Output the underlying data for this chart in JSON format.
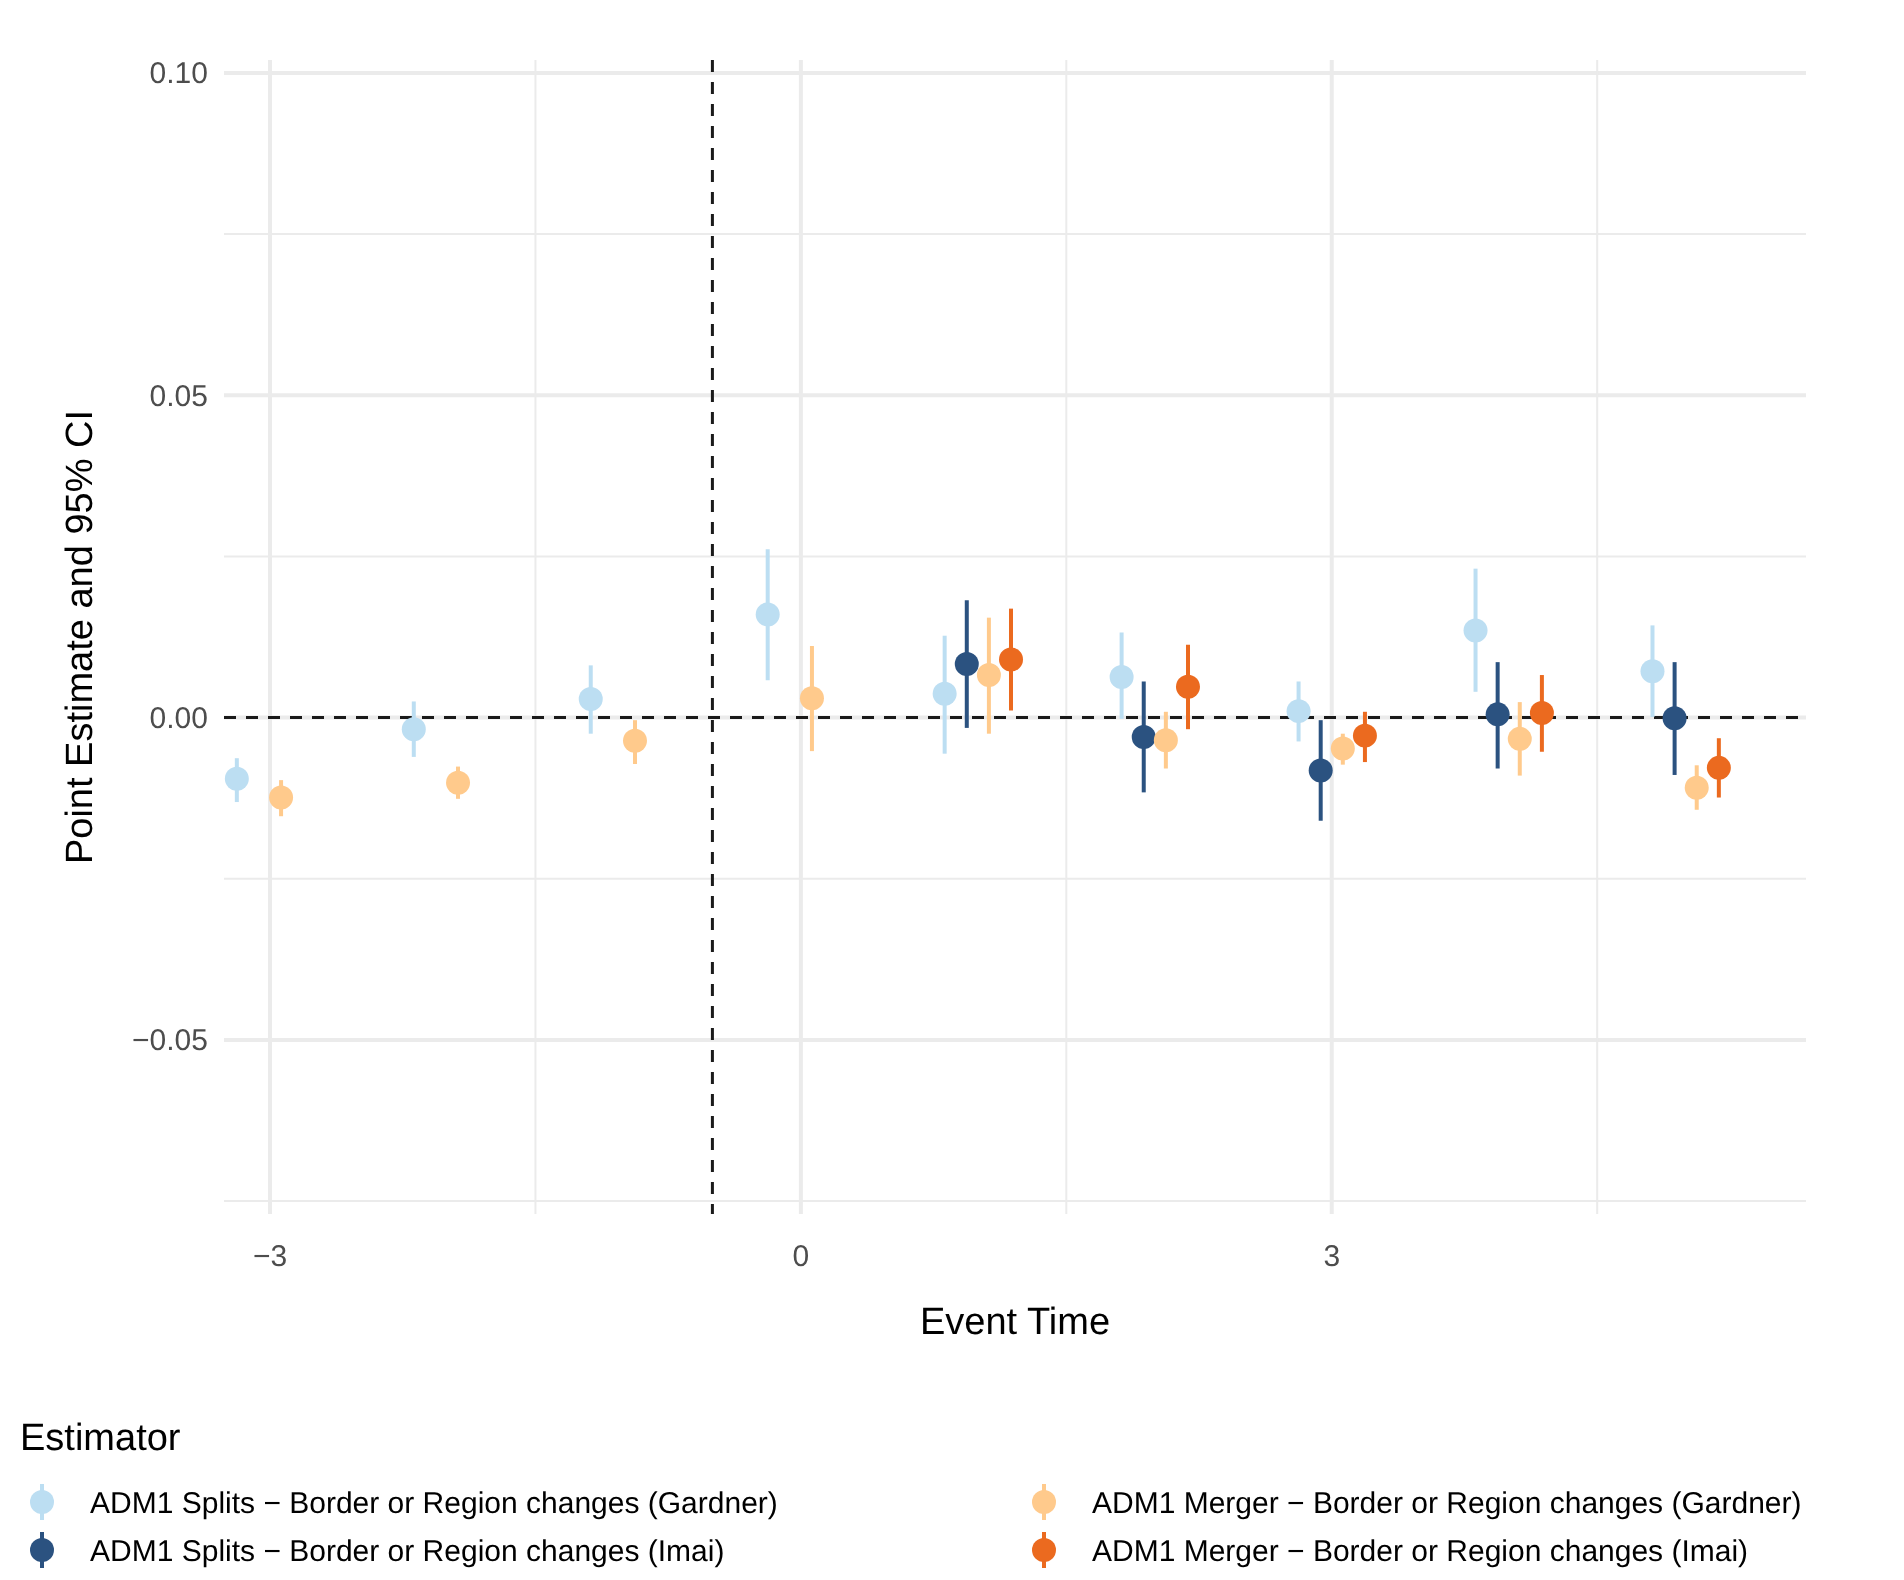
{
  "chart_data": {
    "type": "scatter",
    "xlabel": "Event Time",
    "ylabel": "Point Estimate and 95% CI",
    "legend_title": "Estimator",
    "legend": "bottom",
    "grid": true,
    "marker": "circle",
    "xlim": [
      -3.26,
      5.68
    ],
    "ylim": [
      -0.077,
      0.102
    ],
    "xticks": [
      {
        "value": -3,
        "label": "−3"
      },
      {
        "value": -1.5,
        "label": null
      },
      0,
      {
        "value": 1.5,
        "label": null
      },
      3,
      {
        "value": 4.5,
        "label": null
      }
    ],
    "yticks": [
      {
        "value": -0.075,
        "label": null
      },
      {
        "value": -0.05,
        "label": "−0.05"
      },
      {
        "value": -0.025,
        "label": null
      },
      {
        "value": 0,
        "label": "0.00"
      },
      {
        "value": 0.025,
        "label": null
      },
      0.05,
      {
        "value": 0.075,
        "label": null
      },
      {
        "value": 0.1,
        "label": "0.10"
      }
    ],
    "ref_lines": [
      {
        "axis": "x",
        "value": -0.5,
        "line_style": "dashed",
        "color": "#1a1a1a"
      },
      {
        "axis": "y",
        "value": 0,
        "line_style": "dashed",
        "color": "#1a1a1a"
      }
    ],
    "series": [
      {
        "name": "ADM1 Splits − Border or Region changes (Gardner)",
        "color": "#bcdef2",
        "x": [
          -3.1875,
          -2.1875,
          -1.1875,
          -0.1875,
          0.8125,
          1.8125,
          2.8125,
          3.8125,
          4.8125
        ],
        "values": [
          -0.0095,
          -0.0018,
          0.0029,
          0.016,
          0.0037,
          0.0063,
          0.001,
          0.0135,
          0.0072
        ],
        "errors": [
          [
            -0.0131,
            -0.0063
          ],
          [
            -0.0061,
            0.0025
          ],
          [
            -0.0025,
            0.0081
          ],
          [
            0.0058,
            0.0261
          ],
          [
            -0.0056,
            0.0127
          ],
          [
            -0.0002,
            0.0132
          ],
          [
            -0.0037,
            0.0056
          ],
          [
            0.004,
            0.0231
          ],
          [
            0.0001,
            0.0143
          ]
        ]
      },
      {
        "name": "ADM1 Splits − Border or Region changes (Imai)",
        "color": "#2b5280",
        "x": [
          0.9375,
          1.9375,
          2.9375,
          3.9375,
          4.9375
        ],
        "values": [
          0.0083,
          -0.003,
          -0.0082,
          0.0005,
          -0.0001
        ],
        "errors": [
          [
            -0.0016,
            0.0182
          ],
          [
            -0.0116,
            0.0056
          ],
          [
            -0.016,
            -0.0004
          ],
          [
            -0.0079,
            0.0086
          ],
          [
            -0.0089,
            0.0086
          ]
        ]
      },
      {
        "name": "ADM1 Merger − Border or Region changes (Gardner)",
        "color": "#ffca8c",
        "x": [
          -2.9375,
          -1.9375,
          -0.9375,
          0.0625,
          1.0625,
          2.0625,
          3.0625,
          4.0625,
          5.0625
        ],
        "values": [
          -0.0124,
          -0.0101,
          -0.0036,
          0.003,
          0.0066,
          -0.0035,
          -0.0048,
          -0.0033,
          -0.0109
        ],
        "errors": [
          [
            -0.0153,
            -0.0097
          ],
          [
            -0.0126,
            -0.0076
          ],
          [
            -0.0072,
            -0.0004
          ],
          [
            -0.0052,
            0.0111
          ],
          [
            -0.0025,
            0.0155
          ],
          [
            -0.0079,
            0.0009
          ],
          [
            -0.0073,
            -0.0025
          ],
          [
            -0.009,
            0.0024
          ],
          [
            -0.0143,
            -0.0074
          ]
        ]
      },
      {
        "name": "ADM1 Merger − Border or Region changes (Imai)",
        "color": "#eb6a1f",
        "x": [
          1.1875,
          2.1875,
          3.1875,
          4.1875,
          5.1875
        ],
        "values": [
          0.009,
          0.0048,
          -0.0028,
          0.0007,
          -0.0078
        ],
        "errors": [
          [
            0.0011,
            0.0169
          ],
          [
            -0.0018,
            0.0113
          ],
          [
            -0.0069,
            0.0009
          ],
          [
            -0.0053,
            0.0066
          ],
          [
            -0.0124,
            -0.0032
          ]
        ]
      }
    ]
  }
}
